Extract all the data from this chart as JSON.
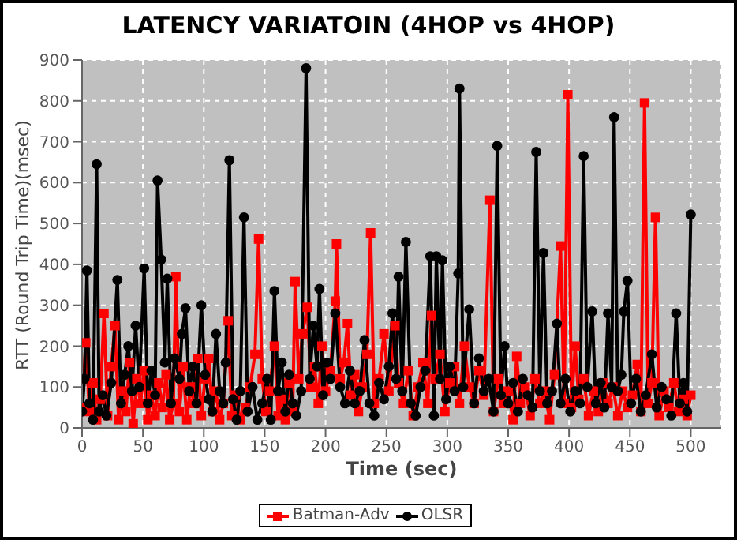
{
  "chart_data": {
    "type": "line",
    "title": "LATENCY VARIATOIN (4HOP vs 4HOP)",
    "xlabel": "Time (sec)",
    "ylabel": "RTT (Round Trip Time)(msec)",
    "xlim": [
      0,
      525
    ],
    "xticks": [
      0,
      50,
      100,
      150,
      200,
      250,
      300,
      350,
      400,
      450,
      500
    ],
    "ylim": [
      0,
      900
    ],
    "yticks": [
      0,
      100,
      200,
      300,
      400,
      500,
      600,
      700,
      800,
      900
    ],
    "grid": true,
    "legend": "bottom",
    "line_style": "solid",
    "series": [
      {
        "name": "Batman-Adv",
        "color": "#ff0000",
        "marker": "square",
        "x": [
          0,
          3,
          6,
          9,
          12,
          15,
          18,
          21,
          24,
          27,
          30,
          33,
          36,
          39,
          42,
          45,
          48,
          51,
          54,
          57,
          60,
          63,
          66,
          69,
          72,
          75,
          77,
          80,
          83,
          86,
          89,
          92,
          95,
          98,
          101,
          104,
          107,
          110,
          113,
          116,
          120,
          123,
          126,
          130,
          134,
          138,
          142,
          145,
          148,
          151,
          154,
          158,
          161,
          164,
          167,
          170,
          173,
          175,
          178,
          181,
          185,
          188,
          191,
          194,
          197,
          200,
          204,
          208,
          209,
          212,
          215,
          218,
          221,
          224,
          227,
          230,
          234,
          237,
          240,
          244,
          248,
          252,
          257,
          260,
          264,
          268,
          272,
          276,
          280,
          284,
          287,
          290,
          294,
          298,
          302,
          306,
          310,
          314,
          318,
          322,
          326,
          330,
          335,
          338,
          342,
          346,
          350,
          354,
          357,
          360,
          364,
          368,
          372,
          376,
          380,
          384,
          388,
          393,
          396,
          399,
          402,
          405,
          408,
          412,
          416,
          420,
          424,
          428,
          432,
          436,
          440,
          444,
          448,
          452,
          456,
          459,
          462,
          465,
          468,
          471,
          474,
          478,
          482,
          486,
          490,
          494,
          497,
          500
        ],
        "values": [
          50,
          208,
          40,
          110,
          20,
          70,
          280,
          30,
          150,
          250,
          20,
          90,
          40,
          160,
          10,
          120,
          60,
          140,
          20,
          80,
          30,
          110,
          50,
          130,
          20,
          60,
          370,
          40,
          150,
          20,
          100,
          60,
          170,
          30,
          120,
          170,
          40,
          90,
          20,
          60,
          262,
          30,
          80,
          20,
          50,
          100,
          180,
          462,
          120,
          40,
          90,
          200,
          30,
          70,
          20,
          110,
          40,
          358,
          120,
          230,
          295,
          100,
          150,
          60,
          200,
          90,
          140,
          310,
          450,
          120,
          160,
          255,
          80,
          130,
          40,
          100,
          180,
          477,
          60,
          120,
          230,
          90,
          250,
          110,
          60,
          140,
          30,
          100,
          160,
          60,
          275,
          120,
          180,
          40,
          110,
          150,
          60,
          200,
          100,
          60,
          140,
          80,
          557,
          40,
          120,
          60,
          90,
          20,
          175,
          60,
          100,
          30,
          120,
          60,
          90,
          20,
          130,
          445,
          60,
          815,
          50,
          200,
          70,
          120,
          30,
          90,
          40,
          110,
          60,
          100,
          30,
          90,
          50,
          80,
          155,
          40,
          795,
          60,
          110,
          515,
          30,
          90,
          50,
          110,
          40,
          70,
          30,
          80
        ]
      },
      {
        "name": "OLSR",
        "color": "#000000",
        "marker": "circle",
        "x": [
          0,
          2,
          4,
          6,
          9,
          12,
          14,
          17,
          20,
          24,
          29,
          32,
          35,
          38,
          41,
          44,
          47,
          51,
          54,
          57,
          60,
          62,
          65,
          68,
          70,
          73,
          76,
          80,
          82,
          85,
          88,
          91,
          94,
          98,
          101,
          104,
          107,
          110,
          113,
          116,
          118,
          121,
          124,
          127,
          130,
          133,
          136,
          140,
          144,
          148,
          152,
          155,
          158,
          161,
          164,
          167,
          170,
          173,
          176,
          180,
          184,
          187,
          190,
          193,
          195,
          198,
          201,
          204,
          208,
          212,
          216,
          220,
          224,
          228,
          232,
          236,
          240,
          244,
          248,
          252,
          255,
          258,
          260,
          263,
          266,
          270,
          274,
          278,
          282,
          286,
          289,
          291,
          294,
          296,
          299,
          302,
          306,
          309,
          310,
          313,
          318,
          322,
          326,
          330,
          334,
          338,
          341,
          344,
          347,
          350,
          354,
          358,
          362,
          366,
          370,
          373,
          376,
          379,
          382,
          386,
          390,
          393,
          397,
          401,
          405,
          409,
          412,
          415,
          419,
          422,
          426,
          429,
          432,
          435,
          437,
          440,
          443,
          445,
          448,
          451,
          455,
          459,
          463,
          468,
          472,
          476,
          480,
          484,
          488,
          491,
          494,
          497,
          500
        ],
        "values": [
          40,
          120,
          385,
          60,
          20,
          645,
          40,
          80,
          30,
          110,
          362,
          60,
          130,
          200,
          90,
          250,
          100,
          390,
          60,
          140,
          80,
          605,
          412,
          160,
          365,
          60,
          170,
          120,
          230,
          293,
          90,
          150,
          60,
          300,
          130,
          70,
          40,
          230,
          90,
          60,
          160,
          655,
          70,
          20,
          90,
          515,
          40,
          100,
          20,
          60,
          120,
          20,
          335,
          90,
          160,
          40,
          130,
          60,
          30,
          90,
          880,
          120,
          250,
          150,
          340,
          80,
          160,
          120,
          280,
          100,
          60,
          140,
          60,
          90,
          215,
          60,
          30,
          110,
          70,
          150,
          280,
          120,
          370,
          90,
          455,
          60,
          30,
          100,
          140,
          420,
          30,
          420,
          120,
          410,
          70,
          150,
          90,
          378,
          830,
          100,
          290,
          60,
          170,
          90,
          120,
          40,
          690,
          80,
          200,
          60,
          110,
          40,
          120,
          80,
          50,
          675,
          90,
          428,
          60,
          90,
          255,
          60,
          120,
          40,
          90,
          60,
          665,
          100,
          285,
          60,
          110,
          50,
          280,
          100,
          760,
          90,
          130,
          285,
          360,
          60,
          120,
          40,
          80,
          180,
          50,
          100,
          70,
          30,
          280,
          60,
          110,
          40,
          522
        ]
      }
    ]
  }
}
